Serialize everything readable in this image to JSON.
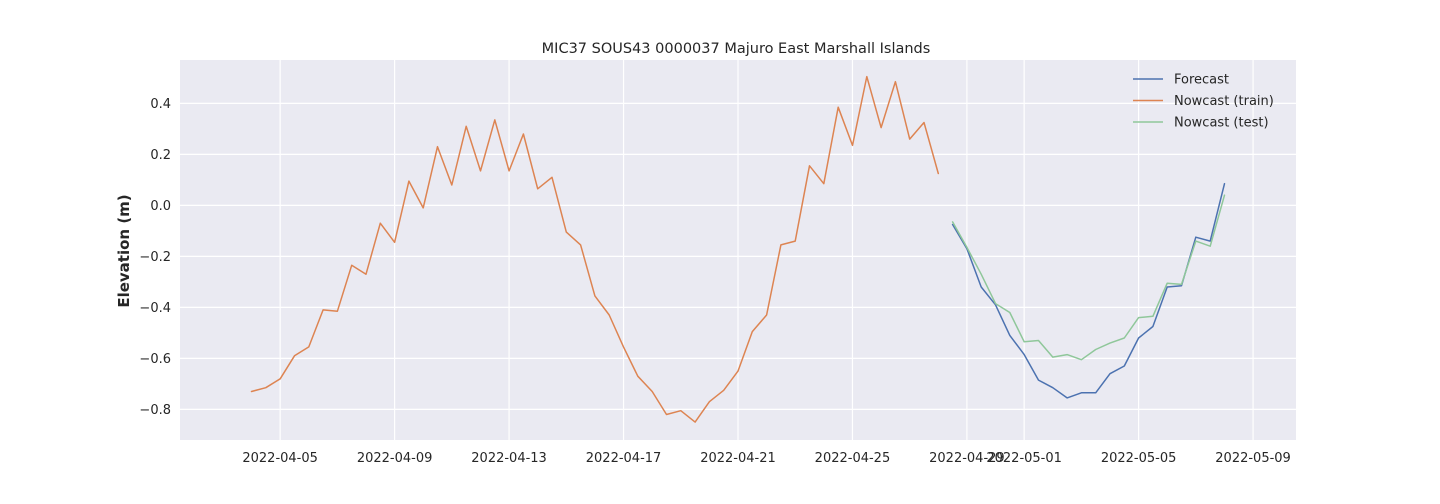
{
  "chart_data": {
    "type": "line",
    "title": "MIC37 SOUS43 0000037 Majuro East Marshall Islands",
    "xlabel": "",
    "ylabel": "Elevation (m)",
    "x_type": "date",
    "xlim": [
      "2022-04-01T12:00",
      "2022-05-10T12:00"
    ],
    "ylim": [
      -0.92,
      0.57
    ],
    "x_ticks": [
      "2022-04-05",
      "2022-04-09",
      "2022-04-13",
      "2022-04-17",
      "2022-04-21",
      "2022-04-25",
      "2022-04-29",
      "2022-05-01",
      "2022-05-05",
      "2022-05-09"
    ],
    "y_ticks": [
      0.4,
      0.2,
      0.0,
      -0.2,
      -0.4,
      -0.6,
      -0.8
    ],
    "y_tick_labels": [
      "0.4",
      "0.2",
      "0.0",
      "−0.2",
      "−0.4",
      "−0.6",
      "−0.8"
    ],
    "grid": true,
    "legend_position": "top-right",
    "background": "#eaeaf2",
    "series": [
      {
        "name": "Forecast",
        "color": "#4c72b0",
        "x": [
          "2022-04-28T12:00",
          "2022-04-29T00:00",
          "2022-04-29T12:00",
          "2022-04-30T00:00",
          "2022-04-30T12:00",
          "2022-05-01T00:00",
          "2022-05-01T12:00",
          "2022-05-02T00:00",
          "2022-05-02T12:00",
          "2022-05-03T00:00",
          "2022-05-03T12:00",
          "2022-05-04T00:00",
          "2022-05-04T12:00",
          "2022-05-05T00:00",
          "2022-05-05T12:00",
          "2022-05-06T00:00",
          "2022-05-06T12:00",
          "2022-05-07T00:00",
          "2022-05-07T12:00",
          "2022-05-08T00:00"
        ],
        "values": [
          -0.075,
          -0.17,
          -0.32,
          -0.39,
          -0.51,
          -0.585,
          -0.685,
          -0.715,
          -0.755,
          -0.735,
          -0.735,
          -0.66,
          -0.63,
          -0.52,
          -0.475,
          -0.32,
          -0.315,
          -0.125,
          -0.14,
          0.085
        ]
      },
      {
        "name": "Nowcast (train)",
        "color": "#dd8452",
        "x": [
          "2022-04-04T00:00",
          "2022-04-04T12:00",
          "2022-04-05T00:00",
          "2022-04-05T12:00",
          "2022-04-06T00:00",
          "2022-04-06T12:00",
          "2022-04-07T00:00",
          "2022-04-07T12:00",
          "2022-04-08T00:00",
          "2022-04-08T12:00",
          "2022-04-09T00:00",
          "2022-04-09T12:00",
          "2022-04-10T00:00",
          "2022-04-10T12:00",
          "2022-04-11T00:00",
          "2022-04-11T12:00",
          "2022-04-12T00:00",
          "2022-04-12T12:00",
          "2022-04-13T00:00",
          "2022-04-13T12:00",
          "2022-04-14T00:00",
          "2022-04-14T12:00",
          "2022-04-15T00:00",
          "2022-04-15T12:00",
          "2022-04-16T00:00",
          "2022-04-16T12:00",
          "2022-04-17T00:00",
          "2022-04-17T12:00",
          "2022-04-18T00:00",
          "2022-04-18T12:00",
          "2022-04-19T00:00",
          "2022-04-19T12:00",
          "2022-04-20T00:00",
          "2022-04-20T12:00",
          "2022-04-21T00:00",
          "2022-04-21T12:00",
          "2022-04-22T00:00",
          "2022-04-22T12:00",
          "2022-04-23T00:00",
          "2022-04-23T12:00",
          "2022-04-24T00:00",
          "2022-04-24T12:00",
          "2022-04-25T00:00",
          "2022-04-25T12:00",
          "2022-04-26T00:00",
          "2022-04-26T12:00",
          "2022-04-27T00:00",
          "2022-04-27T12:00",
          "2022-04-28T00:00"
        ],
        "values": [
          -0.73,
          -0.715,
          -0.68,
          -0.59,
          -0.555,
          -0.41,
          -0.415,
          -0.235,
          -0.27,
          -0.07,
          -0.145,
          0.095,
          -0.01,
          0.23,
          0.08,
          0.31,
          0.135,
          0.335,
          0.135,
          0.28,
          0.065,
          0.11,
          -0.105,
          -0.155,
          -0.355,
          -0.43,
          -0.555,
          -0.67,
          -0.73,
          -0.82,
          -0.805,
          -0.85,
          -0.77,
          -0.725,
          -0.65,
          -0.495,
          -0.43,
          -0.155,
          -0.14,
          0.155,
          0.085,
          0.385,
          0.235,
          0.505,
          0.305,
          0.485,
          0.26,
          0.325,
          0.125
        ]
      },
      {
        "name": "Nowcast (test)",
        "color": "#8fc79a",
        "x": [
          "2022-04-28T12:00",
          "2022-04-29T00:00",
          "2022-04-29T12:00",
          "2022-04-30T00:00",
          "2022-04-30T12:00",
          "2022-05-01T00:00",
          "2022-05-01T12:00",
          "2022-05-02T00:00",
          "2022-05-02T12:00",
          "2022-05-03T00:00",
          "2022-05-03T12:00",
          "2022-05-04T00:00",
          "2022-05-04T12:00",
          "2022-05-05T00:00",
          "2022-05-05T12:00",
          "2022-05-06T00:00",
          "2022-05-06T12:00",
          "2022-05-07T00:00",
          "2022-05-07T12:00",
          "2022-05-08T00:00"
        ],
        "values": [
          -0.065,
          -0.165,
          -0.27,
          -0.385,
          -0.42,
          -0.535,
          -0.53,
          -0.595,
          -0.585,
          -0.605,
          -0.565,
          -0.54,
          -0.52,
          -0.44,
          -0.435,
          -0.305,
          -0.31,
          -0.14,
          -0.16,
          0.04
        ]
      }
    ]
  }
}
